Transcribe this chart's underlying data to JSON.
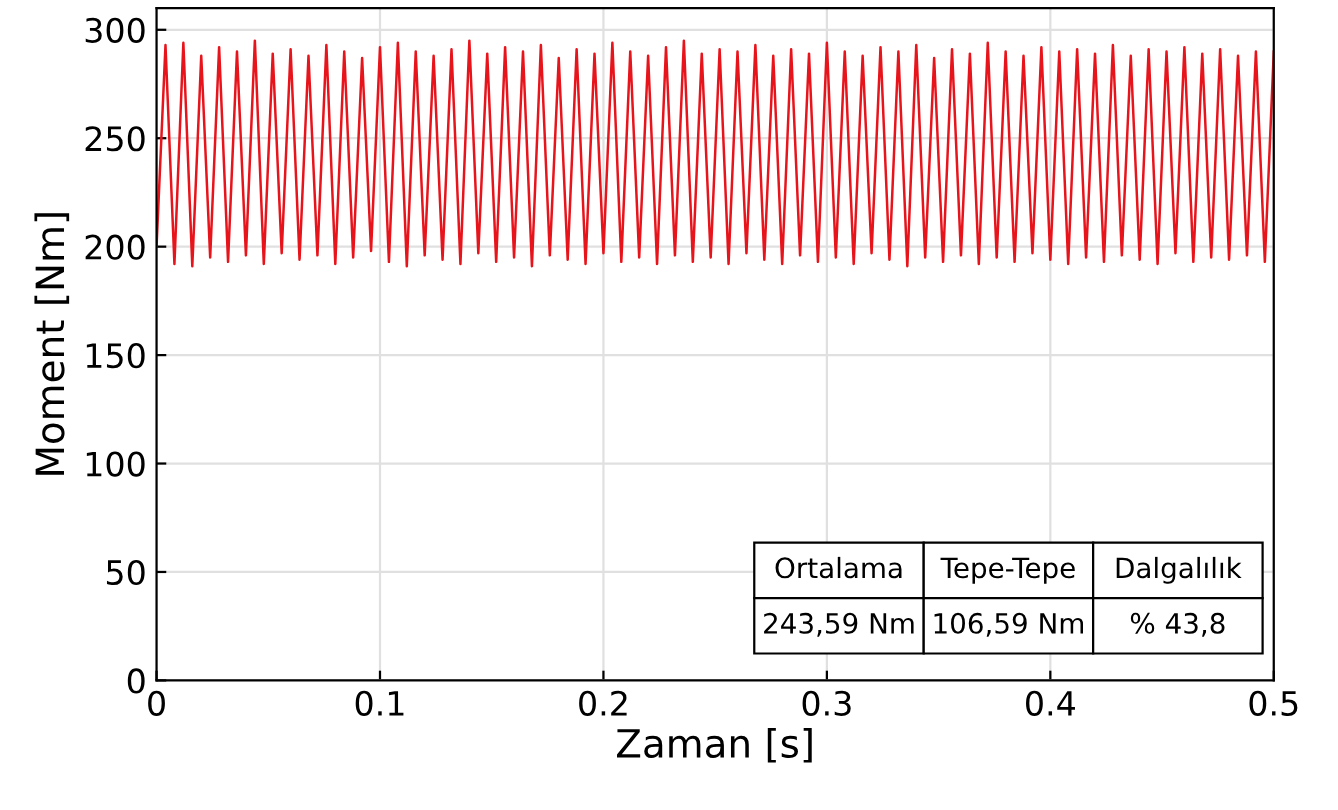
{
  "chart_data": {
    "type": "line",
    "xlabel": "Zaman [s]",
    "ylabel": "Moment [Nm]",
    "x": [
      0,
      0.004,
      0.008,
      0.012,
      0.016,
      0.02,
      0.024,
      0.028,
      0.032,
      0.036,
      0.04,
      0.044,
      0.048,
      0.052,
      0.056,
      0.06,
      0.064,
      0.068,
      0.072,
      0.076,
      0.08,
      0.084,
      0.088,
      0.092,
      0.096,
      0.1,
      0.104,
      0.108,
      0.112,
      0.116,
      0.12,
      0.124,
      0.128,
      0.132,
      0.136,
      0.14,
      0.144,
      0.148,
      0.152,
      0.156,
      0.16,
      0.164,
      0.168,
      0.172,
      0.176,
      0.18,
      0.184,
      0.188,
      0.192,
      0.196,
      0.2,
      0.204,
      0.208,
      0.212,
      0.216,
      0.22,
      0.224,
      0.228,
      0.232,
      0.236,
      0.24,
      0.244,
      0.248,
      0.252,
      0.256,
      0.26,
      0.264,
      0.268,
      0.272,
      0.276,
      0.28,
      0.284,
      0.288,
      0.292,
      0.296,
      0.3,
      0.304,
      0.308,
      0.312,
      0.316,
      0.32,
      0.324,
      0.328,
      0.332,
      0.336,
      0.34,
      0.344,
      0.348,
      0.352,
      0.356,
      0.36,
      0.364,
      0.368,
      0.372,
      0.376,
      0.38,
      0.384,
      0.388,
      0.392,
      0.396,
      0.4,
      0.404,
      0.408,
      0.412,
      0.416,
      0.42,
      0.424,
      0.428,
      0.432,
      0.436,
      0.44,
      0.444,
      0.448,
      0.452,
      0.456,
      0.46,
      0.464,
      0.468,
      0.472,
      0.476,
      0.48,
      0.484,
      0.488,
      0.492,
      0.496,
      0.5
    ],
    "series": [
      {
        "color": "#e8141c",
        "values": [
          200,
          293,
          192,
          294,
          191,
          288,
          195,
          292,
          193,
          290,
          196,
          295,
          192,
          289,
          197,
          291,
          194,
          288,
          196,
          293,
          192,
          290,
          195,
          287,
          198,
          292,
          193,
          294,
          191,
          290,
          196,
          288,
          194,
          291,
          192,
          295,
          197,
          289,
          193,
          292,
          195,
          290,
          191,
          293,
          196,
          287,
          194,
          291,
          192,
          289,
          197,
          294,
          193,
          290,
          195,
          288,
          192,
          292,
          196,
          295,
          193,
          289,
          195,
          291,
          192,
          290,
          197,
          293,
          194,
          288,
          192,
          291,
          196,
          289,
          193,
          294,
          195,
          290,
          192,
          288,
          197,
          292,
          194,
          290,
          191,
          293,
          195,
          287,
          193,
          291,
          196,
          289,
          192,
          294,
          195,
          290,
          193,
          288,
          197,
          292,
          194,
          290,
          192,
          291,
          195,
          289,
          193,
          293,
          196,
          288,
          194,
          291,
          192,
          290,
          197,
          292,
          193,
          289,
          195,
          291,
          194,
          288,
          196,
          290,
          193,
          290
        ]
      }
    ],
    "xlim": [
      0,
      0.5
    ],
    "xticks": [
      0,
      0.1,
      0.2,
      0.3,
      0.4,
      0.5
    ],
    "ylim": [
      0,
      310
    ],
    "yticks": [
      0,
      50,
      100,
      150,
      200,
      250,
      300
    ],
    "grid": true,
    "marker": "none",
    "line_style": "solid",
    "annotations": [
      "Ortalama",
      "Tepe-Tepe",
      "Dalgalılık",
      "243,59 Nm",
      "106,59 Nm",
      "% 43,8"
    ]
  }
}
